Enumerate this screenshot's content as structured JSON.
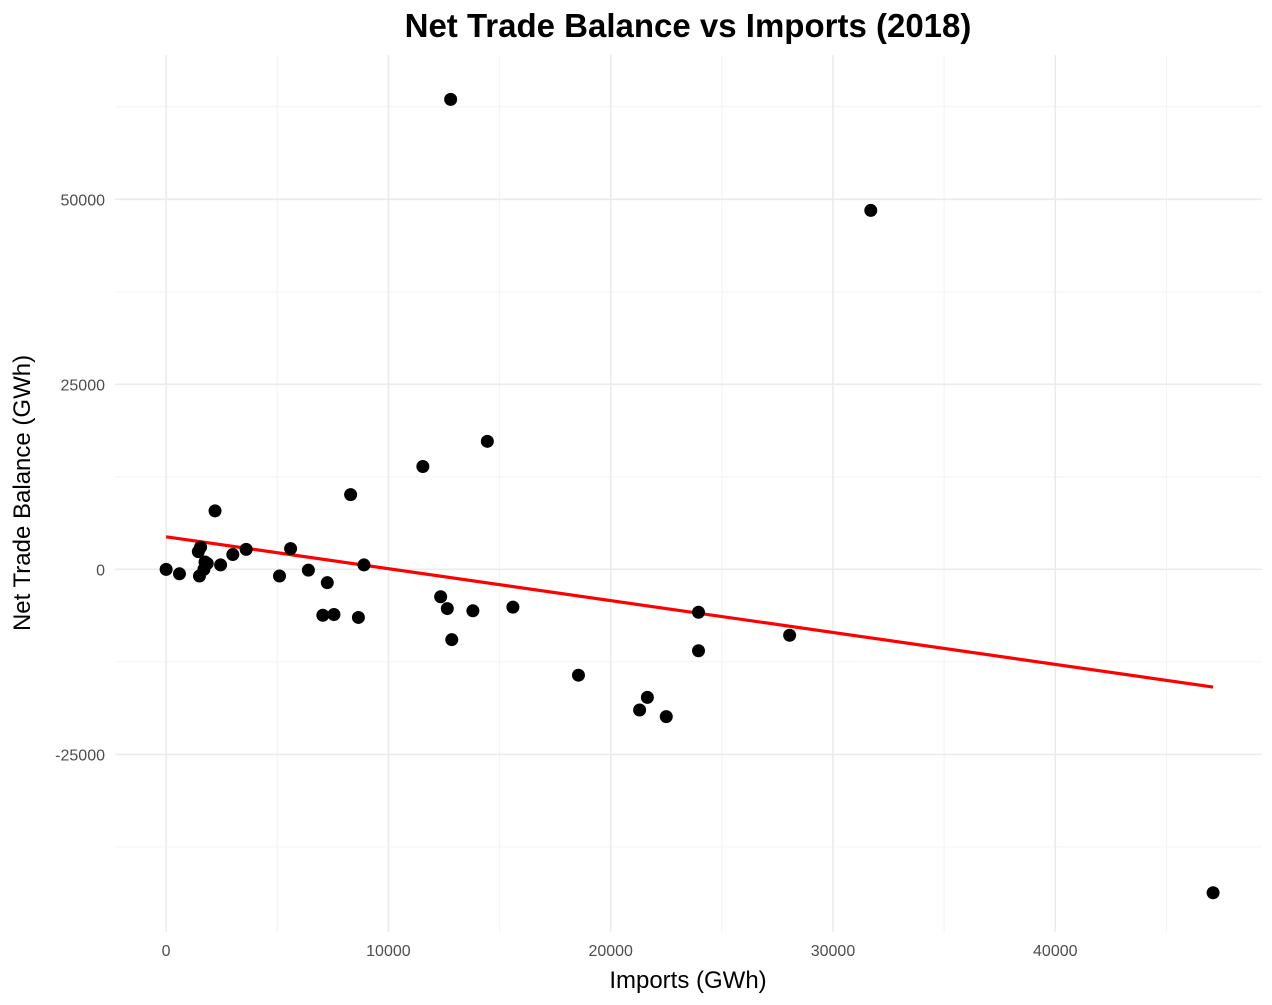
{
  "chart_data": {
    "type": "scatter",
    "title": "Net Trade Balance vs Imports (2018)",
    "xlabel": "Imports (GWh)",
    "ylabel": "Net Trade Balance (GWh)",
    "xlim": [
      -2300,
      49300
    ],
    "ylim": [
      -49000,
      69500
    ],
    "x_ticks": [
      0,
      10000,
      20000,
      30000,
      40000
    ],
    "y_ticks": [
      -25000,
      0,
      25000,
      50000
    ],
    "grid": true,
    "colors": {
      "points": "#000000",
      "trend": "#ff0000"
    },
    "points": [
      {
        "x": 0,
        "y": 0
      },
      {
        "x": 600,
        "y": -600
      },
      {
        "x": 1450,
        "y": 2400
      },
      {
        "x": 1500,
        "y": -900
      },
      {
        "x": 1550,
        "y": 3000
      },
      {
        "x": 1700,
        "y": 0
      },
      {
        "x": 1750,
        "y": 1000
      },
      {
        "x": 1850,
        "y": 800
      },
      {
        "x": 2200,
        "y": 7900
      },
      {
        "x": 2450,
        "y": 600
      },
      {
        "x": 3000,
        "y": 2000
      },
      {
        "x": 3600,
        "y": 2700
      },
      {
        "x": 5100,
        "y": -900
      },
      {
        "x": 5600,
        "y": 2800
      },
      {
        "x": 6400,
        "y": -100
      },
      {
        "x": 7050,
        "y": -6200
      },
      {
        "x": 7250,
        "y": -1800
      },
      {
        "x": 7550,
        "y": -6100
      },
      {
        "x": 8300,
        "y": 10100
      },
      {
        "x": 8650,
        "y": -6500
      },
      {
        "x": 8900,
        "y": 600
      },
      {
        "x": 11550,
        "y": 13900
      },
      {
        "x": 12350,
        "y": -3700
      },
      {
        "x": 12650,
        "y": -5300
      },
      {
        "x": 12800,
        "y": 63500
      },
      {
        "x": 12850,
        "y": -9500
      },
      {
        "x": 13800,
        "y": -5600
      },
      {
        "x": 14450,
        "y": 17300
      },
      {
        "x": 15600,
        "y": -5100
      },
      {
        "x": 18550,
        "y": -14300
      },
      {
        "x": 21300,
        "y": -19000
      },
      {
        "x": 21650,
        "y": -17300
      },
      {
        "x": 22500,
        "y": -19900
      },
      {
        "x": 23950,
        "y": -5800
      },
      {
        "x": 23950,
        "y": -11000
      },
      {
        "x": 28050,
        "y": -8900
      },
      {
        "x": 31700,
        "y": 48500
      },
      {
        "x": 47100,
        "y": -43700
      }
    ],
    "trendline": {
      "x": [
        0,
        47100
      ],
      "y": [
        4400,
        -15900
      ]
    }
  }
}
